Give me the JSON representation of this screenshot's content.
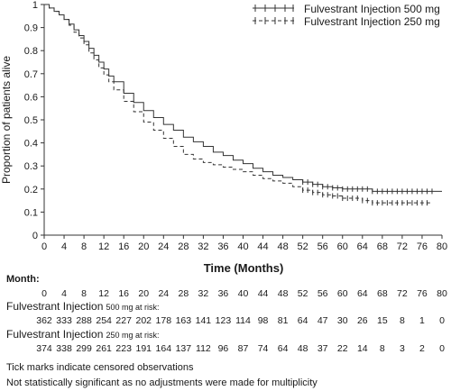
{
  "chart_data": {
    "type": "line",
    "subtype": "kaplan-meier-survival",
    "xlabel": "Time (Months)",
    "ylabel": "Proportion of patients alive",
    "xlim": [
      0,
      80
    ],
    "ylim": [
      0,
      1
    ],
    "xticks": [
      "0",
      "4",
      "8",
      "12",
      "16",
      "20",
      "24",
      "28",
      "32",
      "36",
      "40",
      "44",
      "48",
      "52",
      "56",
      "60",
      "64",
      "68",
      "72",
      "76",
      "80"
    ],
    "yticks": [
      "0",
      "0.1",
      "0.2",
      "0.3",
      "0.4",
      "0.5",
      "0.6",
      "0.7",
      "0.8",
      "0.9",
      "1"
    ],
    "grid": false,
    "legend_position": "top-right",
    "series": [
      {
        "name": "Fulvestrant Injection  500 mg",
        "line_style": "solid",
        "x": [
          0,
          1,
          2,
          3,
          4,
          5,
          6,
          7,
          8,
          9,
          10,
          11,
          12,
          13,
          14,
          16,
          18,
          20,
          22,
          24,
          26,
          28,
          30,
          32,
          34,
          36,
          38,
          40,
          42,
          44,
          46,
          48,
          50,
          52,
          54,
          56,
          58,
          60,
          62,
          64,
          66,
          68,
          70,
          72,
          74,
          76,
          78,
          80
        ],
        "y": [
          1,
          0.985,
          0.97,
          0.955,
          0.935,
          0.915,
          0.89,
          0.865,
          0.84,
          0.81,
          0.78,
          0.75,
          0.72,
          0.69,
          0.665,
          0.615,
          0.575,
          0.54,
          0.51,
          0.48,
          0.455,
          0.425,
          0.405,
          0.385,
          0.36,
          0.345,
          0.325,
          0.31,
          0.29,
          0.275,
          0.26,
          0.25,
          0.24,
          0.23,
          0.22,
          0.21,
          0.205,
          0.2,
          0.2,
          0.2,
          0.19,
          0.19,
          0.19,
          0.19,
          0.19,
          0.19,
          0.19,
          0.19
        ],
        "censor_x": [
          52,
          53,
          54,
          55,
          56,
          57,
          58,
          59,
          60,
          61,
          62,
          63,
          64,
          65,
          66,
          67,
          68,
          69,
          70,
          71,
          72,
          73,
          74,
          75,
          76,
          77,
          78
        ]
      },
      {
        "name": "Fulvestrant Injection  250 mg",
        "line_style": "dashed",
        "x": [
          0,
          1,
          2,
          3,
          4,
          5,
          6,
          7,
          8,
          9,
          10,
          11,
          12,
          13,
          14,
          16,
          18,
          20,
          22,
          24,
          26,
          28,
          30,
          32,
          34,
          36,
          38,
          40,
          42,
          44,
          46,
          48,
          50,
          52,
          54,
          56,
          58,
          60,
          62,
          64,
          66,
          68,
          70,
          72,
          74,
          76,
          78
        ],
        "y": [
          1,
          0.985,
          0.97,
          0.955,
          0.935,
          0.91,
          0.88,
          0.855,
          0.825,
          0.79,
          0.76,
          0.725,
          0.695,
          0.665,
          0.63,
          0.58,
          0.535,
          0.49,
          0.455,
          0.42,
          0.385,
          0.35,
          0.33,
          0.315,
          0.305,
          0.295,
          0.285,
          0.275,
          0.26,
          0.245,
          0.235,
          0.225,
          0.21,
          0.195,
          0.185,
          0.175,
          0.17,
          0.16,
          0.16,
          0.15,
          0.14,
          0.14,
          0.14,
          0.14,
          0.14,
          0.14,
          0.14
        ],
        "censor_x": [
          52,
          53,
          54,
          55,
          56,
          57,
          58,
          59,
          60,
          61,
          62,
          63,
          64,
          65,
          66,
          67,
          68,
          69,
          70,
          71,
          72,
          73,
          74,
          75,
          76,
          77
        ]
      }
    ]
  },
  "risk_table": {
    "month_label": "Month:",
    "months": [
      "0",
      "4",
      "8",
      "12",
      "16",
      "20",
      "24",
      "28",
      "32",
      "36",
      "40",
      "44",
      "48",
      "52",
      "56",
      "60",
      "64",
      "68",
      "72",
      "76",
      "80"
    ],
    "group1_label_big": "Fulvestrant Injection",
    "group1_label_small": "500 mg at risk:",
    "group1_values": [
      "362",
      "333",
      "288",
      "254",
      "227",
      "202",
      "178",
      "163",
      "141",
      "123",
      "114",
      "98",
      "81",
      "64",
      "47",
      "30",
      "26",
      "15",
      "8",
      "1",
      "0"
    ],
    "group2_label_big": "Fulvestrant Injection",
    "group2_label_small": "250 mg at risk:",
    "group2_values": [
      "374",
      "338",
      "299",
      "261",
      "223",
      "191",
      "164",
      "137",
      "112",
      "96",
      "87",
      "74",
      "64",
      "48",
      "37",
      "22",
      "14",
      "8",
      "3",
      "2",
      "0"
    ]
  },
  "footnotes": {
    "line1": "Tick marks indicate censored observations",
    "line2": "Not statistically significant as no adjustments were made for multiplicity"
  }
}
